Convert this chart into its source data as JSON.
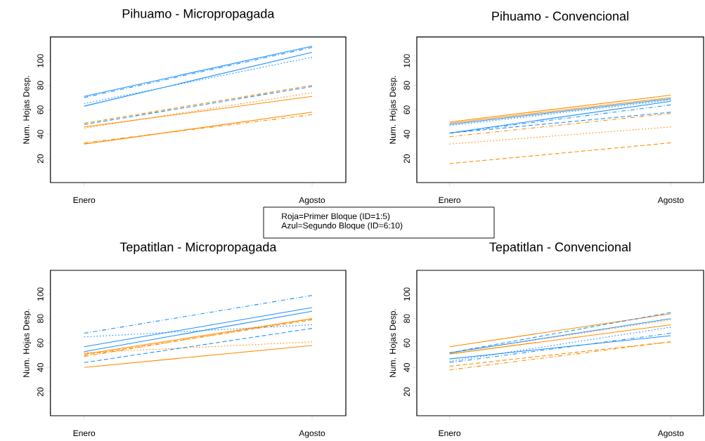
{
  "chart_data": [
    {
      "type": "line",
      "title": "Pihuamo - Micropropagada",
      "ylabel": "Num. Hojas Desp.",
      "categories": [
        "Enero",
        "Agosto"
      ],
      "ylim": [
        0.5,
        119.5
      ],
      "yticks": [
        20,
        40,
        60,
        80,
        100
      ],
      "annotations": [
        "Roja=Primer Bloque (ID=1:5)",
        "Azul=Segundo Bloque (ID=6:10)"
      ],
      "series": [
        {
          "color": "#ff8c00",
          "line_style": "solid",
          "values": [
            46,
            71
          ]
        },
        {
          "color": "#ff8c00",
          "line_style": "dashed",
          "values": [
            49,
            80
          ]
        },
        {
          "color": "#ff8c00",
          "line_style": "dotted",
          "values": [
            45,
            74
          ]
        },
        {
          "color": "#ff8c00",
          "line_style": "dashdot",
          "values": [
            33,
            56
          ]
        },
        {
          "color": "#ff8c00",
          "line_style": "solid",
          "values": [
            32,
            58
          ]
        },
        {
          "color": "#1e90ff",
          "line_style": "solid",
          "values": [
            71,
            112
          ]
        },
        {
          "color": "#1e90ff",
          "line_style": "dashed",
          "values": [
            48,
            79
          ]
        },
        {
          "color": "#1e90ff",
          "line_style": "dotted",
          "values": [
            65,
            103
          ]
        },
        {
          "color": "#1e90ff",
          "line_style": "dashdot",
          "values": [
            70,
            111
          ]
        },
        {
          "color": "#1e90ff",
          "line_style": "solid",
          "values": [
            63,
            107
          ]
        }
      ]
    },
    {
      "type": "line",
      "title": "Pihuamo - Convencional",
      "ylabel": "Num. Hojas Desp.",
      "categories": [
        "Enero",
        "Agosto"
      ],
      "ylim": [
        0.5,
        119.5
      ],
      "yticks": [
        20,
        40,
        60,
        80,
        100
      ],
      "series": [
        {
          "color": "#ff8c00",
          "line_style": "solid",
          "values": [
            50,
            72
          ]
        },
        {
          "color": "#ff8c00",
          "line_style": "dashed",
          "values": [
            16,
            33
          ]
        },
        {
          "color": "#ff8c00",
          "line_style": "dotted",
          "values": [
            32,
            46
          ]
        },
        {
          "color": "#ff8c00",
          "line_style": "dashdot",
          "values": [
            38,
            57
          ]
        },
        {
          "color": "#ff8c00",
          "line_style": "solid",
          "values": [
            49,
            70
          ]
        },
        {
          "color": "#1e90ff",
          "line_style": "solid",
          "values": [
            48,
            69
          ]
        },
        {
          "color": "#1e90ff",
          "line_style": "dashed",
          "values": [
            41,
            58
          ]
        },
        {
          "color": "#1e90ff",
          "line_style": "dotted",
          "values": [
            47,
            68
          ]
        },
        {
          "color": "#1e90ff",
          "line_style": "dashdot",
          "values": [
            41,
            64
          ]
        },
        {
          "color": "#1e90ff",
          "line_style": "solid",
          "values": [
            41,
            67
          ]
        }
      ]
    },
    {
      "type": "line",
      "title": "Tepatitlan - Micropropagada",
      "ylabel": "Num. Hojas Desp.",
      "categories": [
        "Enero",
        "Agosto"
      ],
      "ylim": [
        0.5,
        119.5
      ],
      "yticks": [
        20,
        40,
        60,
        80,
        100
      ],
      "series": [
        {
          "color": "#ff8c00",
          "line_style": "solid",
          "values": [
            51,
            80
          ]
        },
        {
          "color": "#ff8c00",
          "line_style": "dashed",
          "values": [
            50,
            79
          ]
        },
        {
          "color": "#ff8c00",
          "line_style": "dotted",
          "values": [
            52,
            61
          ]
        },
        {
          "color": "#ff8c00",
          "line_style": "dashdot",
          "values": [
            49,
            80
          ]
        },
        {
          "color": "#ff8c00",
          "line_style": "solid",
          "values": [
            40,
            58
          ]
        },
        {
          "color": "#1e90ff",
          "line_style": "solid",
          "values": [
            57,
            89
          ]
        },
        {
          "color": "#1e90ff",
          "line_style": "dashed",
          "values": [
            44,
            72
          ]
        },
        {
          "color": "#1e90ff",
          "line_style": "dotted",
          "values": [
            65,
            75
          ]
        },
        {
          "color": "#1e90ff",
          "line_style": "dashdot",
          "values": [
            68,
            99
          ]
        },
        {
          "color": "#1e90ff",
          "line_style": "solid",
          "values": [
            53,
            86
          ]
        }
      ]
    },
    {
      "type": "line",
      "title": "Tepatitlan - Convencional",
      "ylabel": "Num. Hojas Desp.",
      "categories": [
        "Enero",
        "Agosto"
      ],
      "ylim": [
        0.5,
        119.5
      ],
      "yticks": [
        20,
        40,
        60,
        80,
        100
      ],
      "series": [
        {
          "color": "#ff8c00",
          "line_style": "solid",
          "values": [
            57,
            84
          ]
        },
        {
          "color": "#ff8c00",
          "line_style": "dashed",
          "values": [
            41,
            61
          ]
        },
        {
          "color": "#ff8c00",
          "line_style": "dotted",
          "values": [
            52,
            79
          ]
        },
        {
          "color": "#ff8c00",
          "line_style": "dashdot",
          "values": [
            38,
            61
          ]
        },
        {
          "color": "#ff8c00",
          "line_style": "solid",
          "values": [
            51,
            75
          ]
        },
        {
          "color": "#1e90ff",
          "line_style": "solid",
          "values": [
            52,
            80
          ]
        },
        {
          "color": "#1e90ff",
          "line_style": "dashed",
          "values": [
            52,
            85
          ]
        },
        {
          "color": "#1e90ff",
          "line_style": "dotted",
          "values": [
            45,
            73
          ]
        },
        {
          "color": "#1e90ff",
          "line_style": "dashdot",
          "values": [
            44,
            68
          ]
        },
        {
          "color": "#1e90ff",
          "line_style": "solid",
          "values": [
            47,
            66
          ]
        }
      ]
    }
  ]
}
